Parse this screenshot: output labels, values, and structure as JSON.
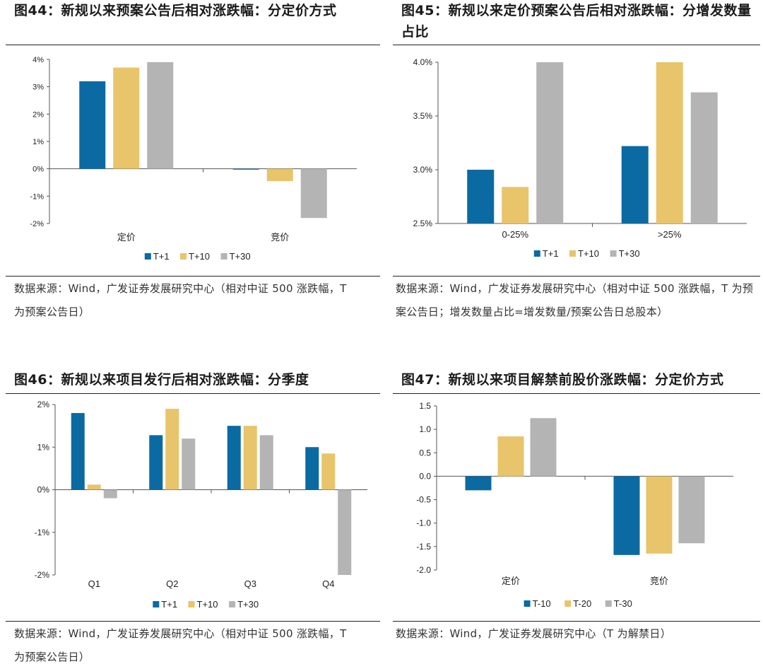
{
  "colors": {
    "s1": "#0b6aa2",
    "s2": "#e8c46a",
    "s3": "#b4b4b4"
  },
  "panels": [
    {
      "title": "图44：新规以来预案公告后相对涨跌幅：分定价方式",
      "source": "数据来源：Wind，广发证券发展研究中心（相对中证 500 涨跌幅，T 为预案公告日）"
    },
    {
      "title": "图45：新规以来定价预案公告后相对涨跌幅：分增发数量占比",
      "source": "数据来源：Wind，广发证券发展研究中心（相对中证 500 涨跌幅，T 为预案公告日；增发数量占比=增发数量/预案公告日总股本）"
    },
    {
      "title": "图46：新规以来项目发行后相对涨跌幅：分季度",
      "source": "数据来源：Wind，广发证券发展研究中心（相对中证 500 涨跌幅，T 为预案公告日）"
    },
    {
      "title": "图47：新规以来项目解禁前股价涨跌幅：分定价方式",
      "source": "数据来源：Wind，广发证券发展研究中心（T 为解禁日）"
    }
  ],
  "chart_data": [
    {
      "type": "bar",
      "categories": [
        "定价",
        "竞价"
      ],
      "series": [
        {
          "name": "T+1",
          "values": [
            3.2,
            0.0
          ]
        },
        {
          "name": "T+10",
          "values": [
            3.7,
            -0.45
          ]
        },
        {
          "name": "T+30",
          "values": [
            3.9,
            -1.8
          ]
        }
      ],
      "ylim": [
        -2,
        4
      ],
      "yticks": [
        4,
        3,
        2,
        1,
        0,
        -1,
        -2
      ],
      "ytick_labels": [
        "4%",
        "3%",
        "2%",
        "1%",
        "0%",
        "-1%",
        "-2%"
      ],
      "legend": "bottom",
      "grid": false
    },
    {
      "type": "bar",
      "categories": [
        "0-25%",
        ">25%"
      ],
      "series": [
        {
          "name": "T+1",
          "values": [
            3.0,
            3.22
          ]
        },
        {
          "name": "T+10",
          "values": [
            2.84,
            4.0
          ]
        },
        {
          "name": "T+30",
          "values": [
            4.0,
            3.72
          ]
        }
      ],
      "ylim": [
        2.5,
        4.0
      ],
      "yticks": [
        4.0,
        3.5,
        3.0,
        2.5
      ],
      "ytick_labels": [
        "4.0%",
        "3.5%",
        "3.0%",
        "2.5%"
      ],
      "legend": "bottom",
      "grid": false
    },
    {
      "type": "bar",
      "categories": [
        "Q1",
        "Q2",
        "Q3",
        "Q4"
      ],
      "series": [
        {
          "name": "T+1",
          "values": [
            1.8,
            1.28,
            1.5,
            1.0
          ]
        },
        {
          "name": "T+10",
          "values": [
            0.12,
            1.9,
            1.5,
            0.85
          ]
        },
        {
          "name": "T+30",
          "values": [
            -0.2,
            1.2,
            1.28,
            -2.0
          ]
        }
      ],
      "ylim": [
        -2,
        2
      ],
      "yticks": [
        2,
        1,
        0,
        -1,
        -2
      ],
      "ytick_labels": [
        "2%",
        "1%",
        "0%",
        "-1%",
        "-2%"
      ],
      "legend": "bottom",
      "grid": false
    },
    {
      "type": "bar",
      "categories": [
        "定价",
        "竞价"
      ],
      "series": [
        {
          "name": "T-10",
          "values": [
            -0.3,
            -1.68
          ]
        },
        {
          "name": "T-20",
          "values": [
            0.85,
            -1.65
          ]
        },
        {
          "name": "T-30",
          "values": [
            1.24,
            -1.43
          ]
        }
      ],
      "ylim": [
        -2.0,
        1.5
      ],
      "yticks": [
        1.5,
        1.0,
        0.5,
        0.0,
        -0.5,
        -1.0,
        -1.5,
        -2.0
      ],
      "ytick_labels": [
        "1.5",
        "1.0",
        "0.5",
        "0.0",
        "-0.5",
        "-1.0",
        "-1.5",
        "-2.0"
      ],
      "legend": "bottom",
      "grid": false
    }
  ]
}
